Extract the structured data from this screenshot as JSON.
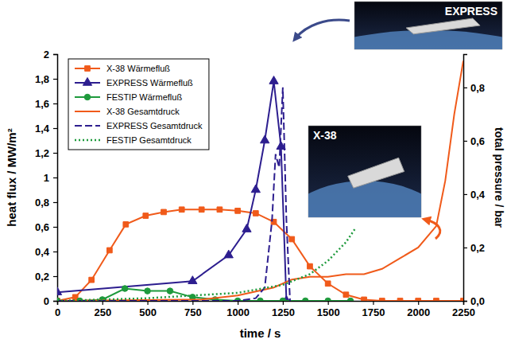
{
  "chart_data": {
    "type": "line",
    "x_label": "time / s",
    "y_label": "heat flux / MW/m²",
    "y2_label": "total pressure / bar",
    "xlim": [
      0,
      2250
    ],
    "xticks": [
      0,
      250,
      500,
      750,
      1000,
      1250,
      1500,
      1750,
      2000,
      2250
    ],
    "ylim": [
      0,
      2
    ],
    "yticks": [
      0,
      {
        "value": 0.2,
        "label": "0,2"
      },
      {
        "value": 0.4,
        "label": "0,4"
      },
      {
        "value": 0.6,
        "label": "0,6"
      },
      {
        "value": 0.8,
        "label": "0,8"
      },
      1,
      {
        "value": 1.2,
        "label": "1,2"
      },
      {
        "value": 1.4,
        "label": "1,4"
      },
      {
        "value": 1.6,
        "label": "1,6"
      },
      {
        "value": 1.8,
        "label": "1,8"
      },
      2
    ],
    "y2lim": [
      0,
      0.925
    ],
    "y2ticks": [
      {
        "value": 0,
        "label": "0,0"
      },
      {
        "value": 0.2,
        "label": "0,2"
      },
      {
        "value": 0.4,
        "label": "0,4"
      },
      {
        "value": 0.6,
        "label": "0,6"
      },
      {
        "value": 0.8,
        "label": "0,8"
      }
    ],
    "grid": false,
    "legend": "upper left",
    "annotations": [
      "EXPRESS",
      "X-38"
    ],
    "series": [
      {
        "name": "X-38 Wärmefluß",
        "color": "#f05a1a",
        "marker": "square",
        "line_style": "solid",
        "x": [
          0,
          100,
          190,
          290,
          380,
          490,
          590,
          690,
          800,
          900,
          1000,
          1100,
          1200,
          1300,
          1400,
          1500,
          1600,
          1700,
          1800,
          1900,
          2000,
          2100,
          2250
        ],
        "values": [
          0,
          0.03,
          0.17,
          0.41,
          0.62,
          0.69,
          0.72,
          0.74,
          0.74,
          0.74,
          0.73,
          0.71,
          0.64,
          0.5,
          0.28,
          0.14,
          0.05,
          0.01,
          0,
          0,
          0,
          0,
          0
        ]
      },
      {
        "name": "EXPRESS Wärmefluß",
        "color": "#2d1e8f",
        "marker": "triangle",
        "line_style": "solid",
        "x": [
          0,
          750,
          950,
          1050,
          1100,
          1150,
          1200,
          1240,
          1270
        ],
        "values": [
          0.07,
          0.16,
          0.37,
          0.58,
          0.9,
          1.3,
          1.78,
          1.25,
          0
        ]
      },
      {
        "name": "FESTIP Wärmefluß",
        "color": "#1e9a3c",
        "marker": "circle",
        "line_style": "solid",
        "x": [
          0,
          125,
          250,
          375,
          500,
          625,
          750,
          875,
          1000,
          1125,
          1250,
          1375,
          1500,
          1625
        ],
        "values": [
          0,
          0,
          0.01,
          0.1,
          0.08,
          0.08,
          0.03,
          0.01,
          0,
          0,
          0,
          0,
          0,
          0
        ]
      },
      {
        "name": "X-38 Gesamtdruck",
        "color": "#f05a1a",
        "line_style": "solid",
        "axis": "y2",
        "x": [
          0,
          800,
          1000,
          1200,
          1300,
          1400,
          1500,
          1600,
          1700,
          1800,
          1900,
          2000,
          2100,
          2150,
          2200,
          2250
        ],
        "values": [
          0,
          0.005,
          0.02,
          0.05,
          0.08,
          0.09,
          0.09,
          0.1,
          0.1,
          0.12,
          0.16,
          0.2,
          0.28,
          0.45,
          0.7,
          0.9
        ]
      },
      {
        "name": "EXPRESS Gesamtdruck",
        "color": "#2d1e8f",
        "line_style": "dashed",
        "axis": "y2",
        "x": [
          0,
          1000,
          1100,
          1150,
          1190,
          1210,
          1230,
          1250,
          1270,
          1290
        ],
        "values": [
          0,
          0,
          0.01,
          0.05,
          0.3,
          0.55,
          0.5,
          0.8,
          0.3,
          0
        ]
      },
      {
        "name": "FESTIP Gesamtdruck",
        "color": "#1e9a3c",
        "line_style": "dotted",
        "axis": "y2",
        "x": [
          0,
          500,
          750,
          1000,
          1250,
          1400,
          1500,
          1600,
          1650
        ],
        "values": [
          0,
          0.01,
          0.02,
          0.03,
          0.06,
          0.1,
          0.15,
          0.22,
          0.27
        ]
      }
    ]
  }
}
